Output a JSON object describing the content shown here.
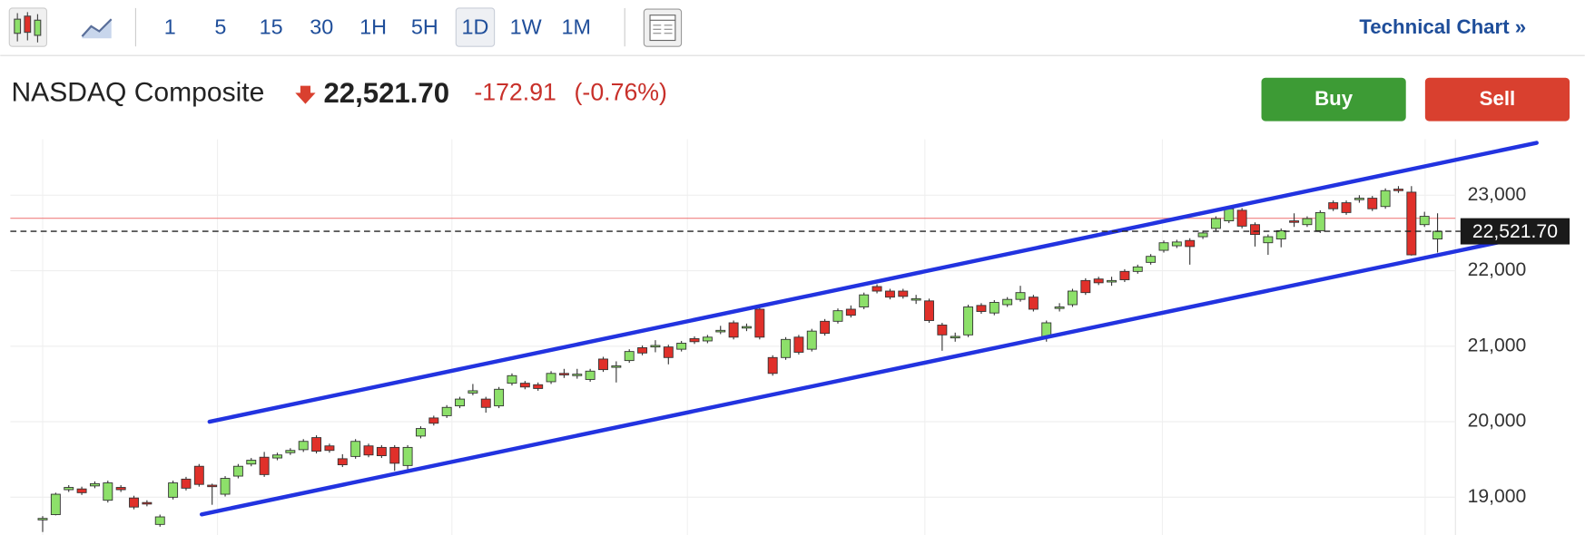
{
  "toolbar": {
    "intervals": [
      "1",
      "5",
      "15",
      "30",
      "1H",
      "5H",
      "1D",
      "1W",
      "1M"
    ],
    "selected_interval": 6,
    "link": "Technical Chart »"
  },
  "quote": {
    "name": "NASDAQ Composite",
    "price": "22,521.70",
    "change": "-172.91",
    "change_percent": "(-0.76%)",
    "buy": "Buy",
    "sell": "Sell"
  },
  "chart_data": {
    "type": "candlestick",
    "up_color": "#8de06a",
    "down_color": "#e0302a",
    "open": [
      18700,
      18770,
      19100,
      19110,
      19150,
      18960,
      19130,
      18990,
      18930,
      18640,
      19000,
      19240,
      19410,
      19160,
      19040,
      19280,
      19440,
      19530,
      19520,
      19590,
      19630,
      19790,
      19680,
      19510,
      19540,
      19680,
      19660,
      19660,
      19420,
      19810,
      20050,
      20080,
      20210,
      20380,
      20300,
      20210,
      20510,
      20510,
      20490,
      20530,
      20640,
      20610,
      20560,
      20830,
      20720,
      20810,
      20980,
      20990,
      20990,
      20960,
      21100,
      21070,
      21190,
      21310,
      21240,
      21490,
      20850,
      20850,
      21120,
      20960,
      21330,
      21330,
      21490,
      21520,
      21790,
      21730,
      21730,
      21610,
      21600,
      21280,
      21110,
      21150,
      21540,
      21440,
      21550,
      21620,
      21650,
      21120,
      21500,
      21550,
      21870,
      21890,
      21850,
      21990,
      21990,
      22110,
      22270,
      22330,
      22400,
      22450,
      22560,
      22660,
      22800,
      22610,
      22370,
      22420,
      22660,
      22610,
      22530,
      22900,
      22900,
      22940,
      22960,
      22850,
      23080,
      23040,
      22610,
      22420
    ],
    "high": [
      18750,
      19060,
      19160,
      19140,
      19210,
      19220,
      19160,
      19020,
      18960,
      18770,
      19220,
      19270,
      19440,
      19180,
      19280,
      19440,
      19520,
      19600,
      19590,
      19650,
      19770,
      19820,
      19710,
      19570,
      19770,
      19710,
      19690,
      19690,
      19690,
      19940,
      20080,
      20220,
      20330,
      20500,
      20330,
      20460,
      20640,
      20540,
      20520,
      20670,
      20700,
      20700,
      20700,
      20860,
      20800,
      20960,
      21010,
      21080,
      21020,
      21070,
      21130,
      21150,
      21270,
      21340,
      21300,
      21520,
      20880,
      21120,
      21150,
      21230,
      21360,
      21500,
      21540,
      21710,
      21820,
      21760,
      21760,
      21680,
      21630,
      21310,
      21180,
      21550,
      21570,
      21610,
      21650,
      21800,
      21680,
      21340,
      21570,
      21760,
      21900,
      21920,
      21920,
      22020,
      22080,
      22220,
      22400,
      22410,
      22430,
      22530,
      22720,
      22850,
      22830,
      22640,
      22480,
      22560,
      22760,
      22720,
      22800,
      22930,
      22930,
      23000,
      22990,
      23090,
      23120,
      23120,
      22780,
      22760
    ],
    "low": [
      18540,
      18760,
      19070,
      19030,
      19120,
      18930,
      19070,
      18840,
      18880,
      18610,
      18970,
      19090,
      19140,
      18900,
      19010,
      19250,
      19410,
      19270,
      19490,
      19560,
      19600,
      19580,
      19590,
      19400,
      19510,
      19530,
      19520,
      19350,
      19340,
      19780,
      19950,
      20050,
      20180,
      20350,
      20120,
      20180,
      20480,
      20430,
      20410,
      20500,
      20580,
      20570,
      20530,
      20660,
      20520,
      20780,
      20880,
      20920,
      20760,
      20930,
      21030,
      21040,
      21160,
      21090,
      21200,
      21090,
      20610,
      20820,
      20890,
      20930,
      21140,
      21300,
      21380,
      21490,
      21700,
      21620,
      21630,
      21560,
      21310,
      20940,
      21060,
      21120,
      21430,
      21410,
      21520,
      21590,
      21460,
      21060,
      21460,
      21520,
      21680,
      21810,
      21800,
      21850,
      21960,
      22080,
      22240,
      22300,
      22080,
      22420,
      22530,
      22630,
      22560,
      22320,
      22210,
      22310,
      22580,
      22580,
      22500,
      22790,
      22740,
      22900,
      22790,
      22820,
      23030,
      22200,
      22580,
      22240
    ],
    "close": [
      18720,
      19040,
      19130,
      19060,
      19180,
      19190,
      19100,
      18870,
      18910,
      18740,
      19190,
      19120,
      19170,
      19140,
      19250,
      19410,
      19490,
      19300,
      19560,
      19620,
      19740,
      19610,
      19620,
      19430,
      19740,
      19560,
      19550,
      19450,
      19660,
      19910,
      19980,
      20190,
      20300,
      20410,
      20190,
      20430,
      20610,
      20460,
      20440,
      20640,
      20620,
      20630,
      20670,
      20690,
      20740,
      20930,
      20910,
      21010,
      20850,
      21040,
      21060,
      21120,
      21210,
      21120,
      21260,
      21120,
      20640,
      21090,
      20920,
      21200,
      21170,
      21470,
      21410,
      21680,
      21730,
      21650,
      21660,
      21630,
      21340,
      21150,
      21130,
      21520,
      21460,
      21580,
      21620,
      21710,
      21490,
      21310,
      21520,
      21730,
      21710,
      21840,
      21870,
      21880,
      22050,
      22190,
      22370,
      22380,
      22320,
      22500,
      22690,
      22820,
      22590,
      22480,
      22450,
      22530,
      22640,
      22690,
      22770,
      22820,
      22770,
      22960,
      22820,
      23060,
      23060,
      22210,
      22720,
      22521.7
    ],
    "ylim": [
      18500,
      23740
    ],
    "yticks": [
      {
        "value": 19000,
        "label": "19,000"
      },
      {
        "value": 20000,
        "label": "20,000"
      },
      {
        "value": 21000,
        "label": "21,000"
      },
      {
        "value": 22000,
        "label": "22,000"
      },
      {
        "value": 23000,
        "label": "23,000"
      }
    ],
    "grid": true,
    "previous_close": 22694.61,
    "previous_close_color": "#f08080",
    "last_price": {
      "value": 22521.7,
      "label": "22,521.70"
    },
    "trendline_color": "#2233e0",
    "trendlines": [
      {
        "start": [
          12.8,
          20000
        ],
        "end": [
          114.6,
          23693
        ]
      },
      {
        "start": [
          12.2,
          18773
        ],
        "end": [
          115.3,
          22507
        ]
      }
    ]
  }
}
